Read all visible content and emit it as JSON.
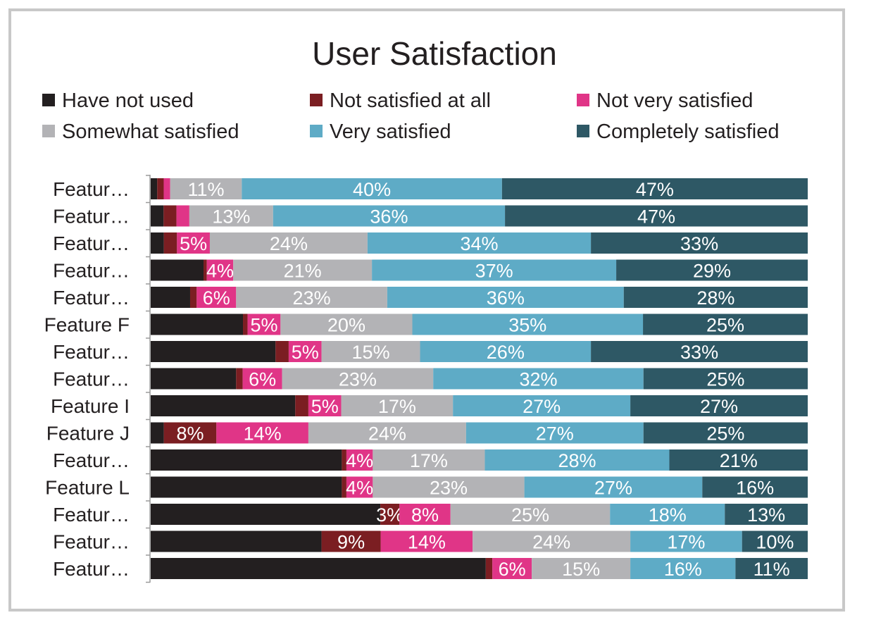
{
  "chart_data": {
    "type": "bar",
    "orientation": "horizontal",
    "stacked": "percent",
    "title": "User Satisfaction",
    "legend_position": "top",
    "grid": false,
    "categories": [
      "Featur…",
      "Featur…",
      "Featur…",
      "Featur…",
      "Featur…",
      "Feature F",
      "Featur…",
      "Featur…",
      "Feature I",
      "Feature J",
      "Featur…",
      "Feature L",
      "Featur…",
      "Featur…",
      "Featur…"
    ],
    "xlim": [
      0,
      100
    ],
    "series": [
      {
        "name": "Have not used",
        "color": "#231f20",
        "label_color": "#ffffff",
        "values": [
          1,
          2,
          2,
          8,
          6,
          14,
          19,
          13,
          22,
          2,
          29,
          29,
          36,
          26,
          51
        ],
        "labels": [
          "",
          "",
          "",
          "",
          "",
          "",
          "",
          "",
          "",
          "",
          "",
          "",
          "",
          "",
          ""
        ]
      },
      {
        "name": "Not satisfied at all",
        "color": "#7b1e22",
        "label_color": "#ffffff",
        "values": [
          1,
          2,
          2,
          0.5,
          1,
          0.7,
          2,
          1,
          2,
          8,
          0.7,
          0.7,
          3,
          9,
          1
        ],
        "labels": [
          "",
          "",
          "",
          "",
          "",
          "",
          "",
          "",
          "",
          "8%",
          "",
          "",
          "3%",
          "9%",
          ""
        ]
      },
      {
        "name": "Not very satisfied",
        "color": "#e03587",
        "label_color": "#ffffff",
        "values": [
          1,
          2,
          5,
          4,
          6,
          5,
          5,
          6,
          5,
          14,
          4,
          4,
          8,
          14,
          6
        ],
        "labels": [
          "",
          "",
          "5%",
          "4%",
          "6%",
          "5%",
          "5%",
          "6%",
          "5%",
          "14%",
          "4%",
          "4%",
          "8%",
          "14%",
          "6%"
        ]
      },
      {
        "name": "Somewhat satisfied",
        "color": "#b3b3b6",
        "label_color": "#ffffff",
        "values": [
          11,
          13,
          24,
          21,
          23,
          20,
          15,
          23,
          17,
          24,
          17,
          23,
          25,
          24,
          15
        ],
        "labels": [
          "11%",
          "13%",
          "24%",
          "21%",
          "23%",
          "20%",
          "15%",
          "23%",
          "17%",
          "24%",
          "17%",
          "23%",
          "25%",
          "24%",
          "15%"
        ]
      },
      {
        "name": "Very satisfied",
        "color": "#5eabc6",
        "label_color": "#ffffff",
        "values": [
          40,
          36,
          34,
          37,
          36,
          35,
          26,
          32,
          27,
          27,
          28,
          27,
          18,
          17,
          16
        ],
        "labels": [
          "40%",
          "36%",
          "34%",
          "37%",
          "36%",
          "35%",
          "26%",
          "32%",
          "27%",
          "27%",
          "28%",
          "27%",
          "18%",
          "17%",
          "16%"
        ]
      },
      {
        "name": "Completely satisfied",
        "color": "#2e5865",
        "label_color": "#ffffff",
        "values": [
          47,
          47,
          33,
          29,
          28,
          25,
          33,
          25,
          27,
          25,
          21,
          16,
          13,
          10,
          11
        ],
        "labels": [
          "47%",
          "47%",
          "33%",
          "29%",
          "28%",
          "25%",
          "33%",
          "25%",
          "27%",
          "25%",
          "21%",
          "16%",
          "13%",
          "10%",
          "11%"
        ]
      }
    ]
  }
}
